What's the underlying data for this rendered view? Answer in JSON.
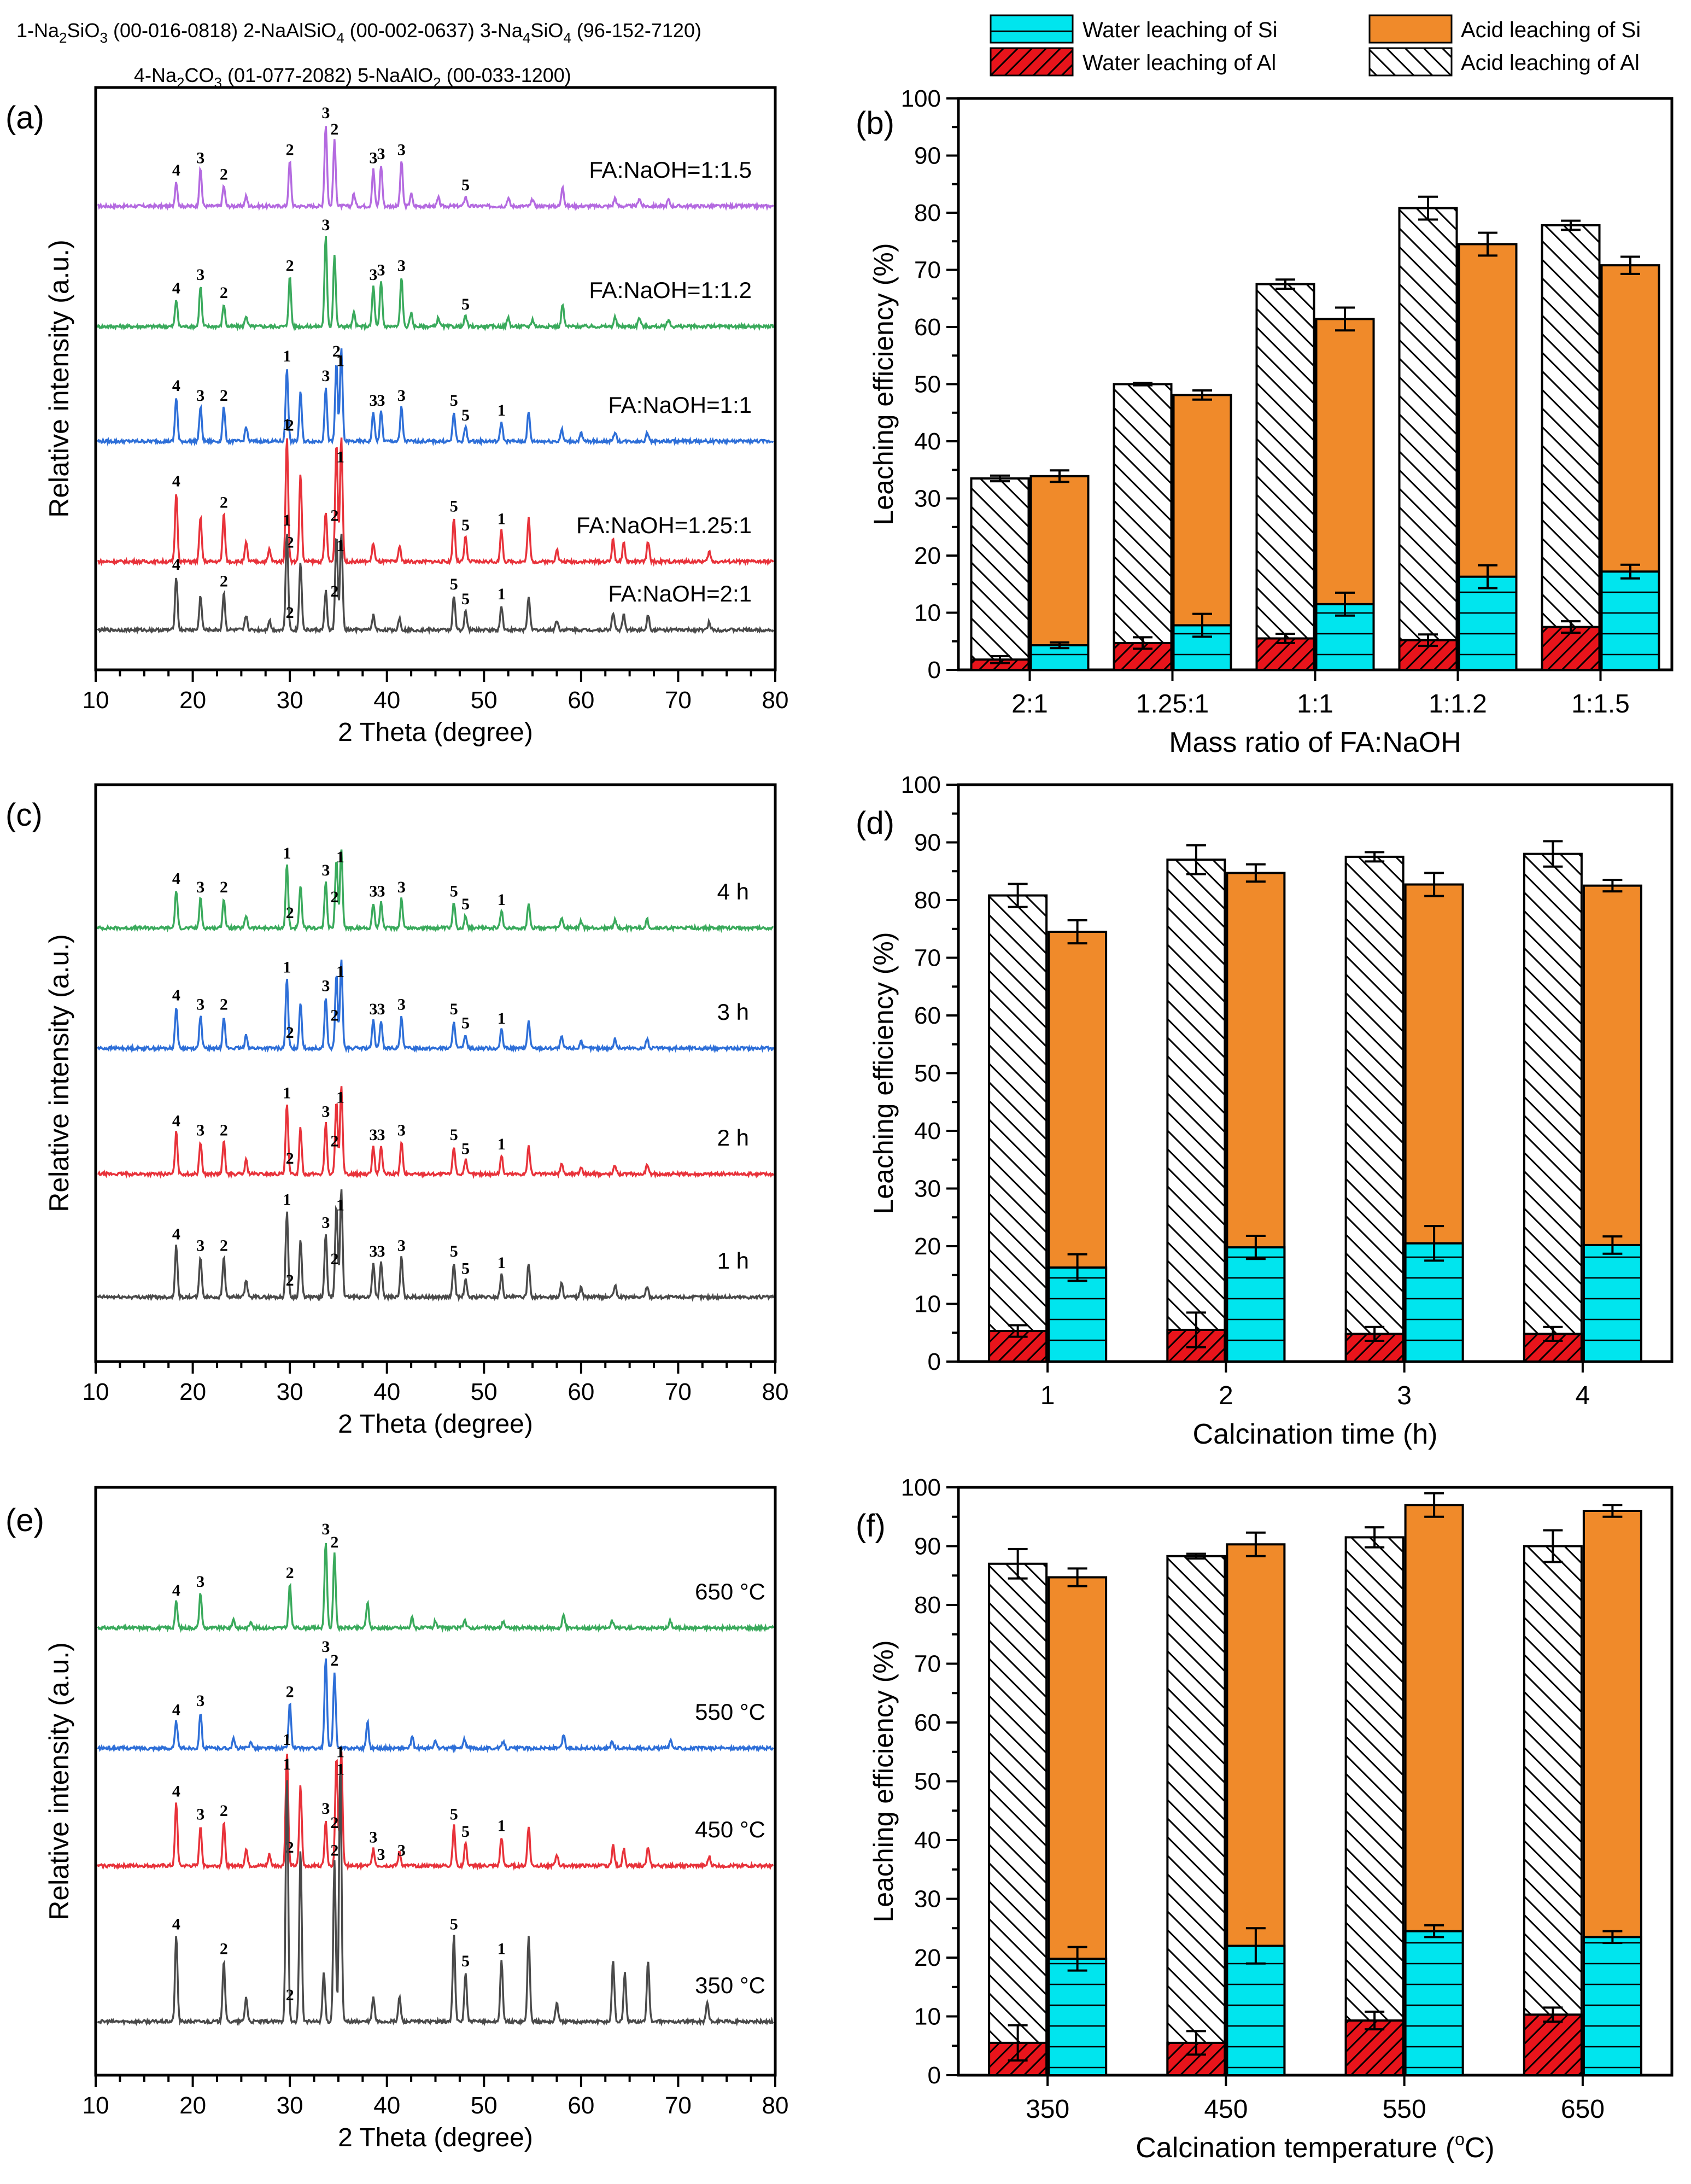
{
  "legend": {
    "water_si": "Water leaching of Si",
    "acid_si": "Acid leaching of Si",
    "water_al": "Water leaching of Al",
    "acid_al": "Acid leaching of Al"
  },
  "phase_header": {
    "line1": [
      {
        "label": "1-Na",
        "sub": "2",
        "mid": "SiO",
        "sub2": "3",
        "tail": " (00-016-0818)"
      },
      {
        "label": "2-NaAlSiO",
        "sub": "4",
        "mid": "",
        "sub2": "",
        "tail": " (00-002-0637)"
      },
      {
        "label": "3-Na",
        "sub": "4",
        "mid": "SiO",
        "sub2": "4",
        "tail": " (96-152-7120)"
      }
    ],
    "line2": [
      {
        "label": "4-Na",
        "sub": "2",
        "mid": "CO",
        "sub2": "3",
        "tail": " (01-077-2082)"
      },
      {
        "label": "5-NaAlO",
        "sub": "2",
        "mid": "",
        "sub2": "",
        "tail": " (00-033-1200)"
      }
    ]
  },
  "colors": {
    "water_si": "#00e5ee",
    "acid_si": "#f08a2a",
    "water_al": "#e8141b",
    "acid_al": "#ffffff",
    "purple": "#b46ae0",
    "green": "#3aaa5c",
    "blue": "#2e6fd8",
    "red": "#e8323a",
    "gray": "#4a4a4a"
  },
  "chart_data": [
    {
      "panel": "(a)",
      "type": "line",
      "xlabel": "2 Theta (degree)",
      "ylabel": "Relative intensity (a.u.)",
      "xlim": [
        10,
        80
      ],
      "xticks": [
        10,
        20,
        30,
        40,
        50,
        60,
        70,
        80
      ],
      "series": [
        {
          "name": "FA:NaOH=1:1.5",
          "color": "purple",
          "peak_labels": [
            {
              "x": 18.3,
              "t": "4"
            },
            {
              "x": 20.8,
              "t": "3"
            },
            {
              "x": 23.2,
              "t": "2"
            },
            {
              "x": 30.0,
              "t": "2"
            },
            {
              "x": 33.7,
              "t": "3"
            },
            {
              "x": 34.6,
              "t": "2"
            },
            {
              "x": 38.6,
              "t": "3"
            },
            {
              "x": 39.4,
              "t": "3"
            },
            {
              "x": 41.5,
              "t": "3"
            },
            {
              "x": 48.1,
              "t": "5"
            }
          ]
        },
        {
          "name": "FA:NaOH=1:1.2",
          "color": "green",
          "peak_labels": [
            {
              "x": 18.3,
              "t": "4"
            },
            {
              "x": 20.8,
              "t": "3"
            },
            {
              "x": 23.2,
              "t": "2"
            },
            {
              "x": 30.0,
              "t": "2"
            },
            {
              "x": 33.7,
              "t": "3"
            },
            {
              "x": 38.6,
              "t": "3"
            },
            {
              "x": 39.4,
              "t": "3"
            },
            {
              "x": 41.5,
              "t": "3"
            },
            {
              "x": 48.1,
              "t": "5"
            }
          ]
        },
        {
          "name": "FA:NaOH=1:1",
          "color": "blue",
          "peak_labels": [
            {
              "x": 18.3,
              "t": "4"
            },
            {
              "x": 20.8,
              "t": "3"
            },
            {
              "x": 23.2,
              "t": "2"
            },
            {
              "x": 29.7,
              "t": "1"
            },
            {
              "x": 30.0,
              "t": "2"
            },
            {
              "x": 33.7,
              "t": "3"
            },
            {
              "x": 34.8,
              "t": "2"
            },
            {
              "x": 35.2,
              "t": "1"
            },
            {
              "x": 38.6,
              "t": "3"
            },
            {
              "x": 39.4,
              "t": "3"
            },
            {
              "x": 41.5,
              "t": "3"
            },
            {
              "x": 46.9,
              "t": "5"
            },
            {
              "x": 48.1,
              "t": "5"
            },
            {
              "x": 51.8,
              "t": "1"
            }
          ]
        },
        {
          "name": "FA:NaOH=1.25:1",
          "color": "red",
          "peak_labels": [
            {
              "x": 18.3,
              "t": "4"
            },
            {
              "x": 23.2,
              "t": "2"
            },
            {
              "x": 29.7,
              "t": "1"
            },
            {
              "x": 30.0,
              "t": "2"
            },
            {
              "x": 34.6,
              "t": "2"
            },
            {
              "x": 35.2,
              "t": "1"
            },
            {
              "x": 46.9,
              "t": "5"
            },
            {
              "x": 48.1,
              "t": "5"
            },
            {
              "x": 51.8,
              "t": "1"
            }
          ]
        },
        {
          "name": "FA:NaOH=2:1",
          "color": "gray",
          "peak_labels": [
            {
              "x": 18.3,
              "t": "4"
            },
            {
              "x": 23.2,
              "t": "2"
            },
            {
              "x": 29.7,
              "t": "1"
            },
            {
              "x": 30.0,
              "t": "2"
            },
            {
              "x": 34.6,
              "t": "2"
            },
            {
              "x": 35.2,
              "t": "1"
            },
            {
              "x": 46.9,
              "t": "5"
            },
            {
              "x": 48.1,
              "t": "5"
            },
            {
              "x": 51.8,
              "t": "1"
            }
          ]
        }
      ]
    },
    {
      "panel": "(b)",
      "type": "bar",
      "xlabel": "Mass ratio of FA:NaOH",
      "ylabel": "Leaching efficiency (%)",
      "ylim": [
        0,
        100
      ],
      "yticks": [
        0,
        10,
        20,
        30,
        40,
        50,
        60,
        70,
        80,
        90,
        100
      ],
      "categories": [
        "2:1",
        "1.25:1",
        "1:1",
        "1:1.2",
        "1:1.5"
      ],
      "series": [
        {
          "name": "Water leaching of Al",
          "values": [
            1.8,
            4.7,
            5.5,
            5.2,
            7.5
          ],
          "err": [
            0.6,
            1.0,
            0.8,
            1.0,
            1.0
          ]
        },
        {
          "name": "Acid leaching of Al",
          "values": [
            33.5,
            50.0,
            67.5,
            80.8,
            77.8
          ],
          "err": [
            0.5,
            0.2,
            0.8,
            2.0,
            0.8
          ]
        },
        {
          "name": "Water leaching of Si",
          "values": [
            4.3,
            7.8,
            11.5,
            16.3,
            17.2
          ],
          "err": [
            0.5,
            2.0,
            2.0,
            2.0,
            1.2
          ]
        },
        {
          "name": "Acid leaching of Si",
          "values": [
            33.9,
            48.1,
            61.4,
            74.5,
            70.8
          ],
          "err": [
            1.0,
            0.8,
            2.0,
            2.0,
            1.5
          ]
        }
      ]
    },
    {
      "panel": "(c)",
      "type": "line",
      "xlabel": "2 Theta (degree)",
      "ylabel": "Relative intensity (a.u.)",
      "xlim": [
        10,
        80
      ],
      "xticks": [
        10,
        20,
        30,
        40,
        50,
        60,
        70,
        80
      ],
      "series": [
        {
          "name": "4 h",
          "color": "green",
          "peak_labels": [
            {
              "x": 18.3,
              "t": "4"
            },
            {
              "x": 20.8,
              "t": "3"
            },
            {
              "x": 23.2,
              "t": "2"
            },
            {
              "x": 29.7,
              "t": "1"
            },
            {
              "x": 30.0,
              "t": "2"
            },
            {
              "x": 33.7,
              "t": "3"
            },
            {
              "x": 34.6,
              "t": "2"
            },
            {
              "x": 35.2,
              "t": "1"
            },
            {
              "x": 38.6,
              "t": "3"
            },
            {
              "x": 39.4,
              "t": "3"
            },
            {
              "x": 41.5,
              "t": "3"
            },
            {
              "x": 46.9,
              "t": "5"
            },
            {
              "x": 48.1,
              "t": "5"
            },
            {
              "x": 51.8,
              "t": "1"
            }
          ]
        },
        {
          "name": "3 h",
          "color": "blue",
          "peak_labels": [
            {
              "x": 18.3,
              "t": "4"
            },
            {
              "x": 20.8,
              "t": "3"
            },
            {
              "x": 23.2,
              "t": "2"
            },
            {
              "x": 29.7,
              "t": "1"
            },
            {
              "x": 30.0,
              "t": "2"
            },
            {
              "x": 33.7,
              "t": "3"
            },
            {
              "x": 34.6,
              "t": "2"
            },
            {
              "x": 35.2,
              "t": "1"
            },
            {
              "x": 38.6,
              "t": "3"
            },
            {
              "x": 39.4,
              "t": "3"
            },
            {
              "x": 41.5,
              "t": "3"
            },
            {
              "x": 46.9,
              "t": "5"
            },
            {
              "x": 48.1,
              "t": "5"
            },
            {
              "x": 51.8,
              "t": "1"
            }
          ]
        },
        {
          "name": "2 h",
          "color": "red",
          "peak_labels": [
            {
              "x": 18.3,
              "t": "4"
            },
            {
              "x": 20.8,
              "t": "3"
            },
            {
              "x": 23.2,
              "t": "2"
            },
            {
              "x": 29.7,
              "t": "1"
            },
            {
              "x": 30.0,
              "t": "2"
            },
            {
              "x": 33.7,
              "t": "3"
            },
            {
              "x": 34.6,
              "t": "2"
            },
            {
              "x": 35.2,
              "t": "1"
            },
            {
              "x": 38.6,
              "t": "3"
            },
            {
              "x": 39.4,
              "t": "3"
            },
            {
              "x": 41.5,
              "t": "3"
            },
            {
              "x": 46.9,
              "t": "5"
            },
            {
              "x": 48.1,
              "t": "5"
            },
            {
              "x": 51.8,
              "t": "1"
            }
          ]
        },
        {
          "name": "1 h",
          "color": "gray",
          "peak_labels": [
            {
              "x": 18.3,
              "t": "4"
            },
            {
              "x": 20.8,
              "t": "3"
            },
            {
              "x": 23.2,
              "t": "2"
            },
            {
              "x": 29.7,
              "t": "1"
            },
            {
              "x": 30.0,
              "t": "2"
            },
            {
              "x": 33.7,
              "t": "3"
            },
            {
              "x": 34.6,
              "t": "2"
            },
            {
              "x": 35.2,
              "t": "1"
            },
            {
              "x": 38.6,
              "t": "3"
            },
            {
              "x": 39.4,
              "t": "3"
            },
            {
              "x": 41.5,
              "t": "3"
            },
            {
              "x": 46.9,
              "t": "5"
            },
            {
              "x": 48.1,
              "t": "5"
            },
            {
              "x": 51.8,
              "t": "1"
            }
          ]
        }
      ]
    },
    {
      "panel": "(d)",
      "type": "bar",
      "xlabel": "Calcination time (h)",
      "ylabel": "Leaching efficiency (%)",
      "ylim": [
        0,
        100
      ],
      "yticks": [
        0,
        10,
        20,
        30,
        40,
        50,
        60,
        70,
        80,
        90,
        100
      ],
      "categories": [
        "1",
        "2",
        "3",
        "4"
      ],
      "series": [
        {
          "name": "Water leaching of Al",
          "values": [
            5.3,
            5.5,
            4.8,
            4.8
          ],
          "err": [
            1.0,
            3.0,
            1.2,
            1.2
          ]
        },
        {
          "name": "Acid leaching of Al",
          "values": [
            80.8,
            87.0,
            87.5,
            88.0
          ],
          "err": [
            2.0,
            2.5,
            0.8,
            2.2
          ]
        },
        {
          "name": "Water leaching of Si",
          "values": [
            16.3,
            19.8,
            20.5,
            20.2
          ],
          "err": [
            2.3,
            2.0,
            3.0,
            1.5
          ]
        },
        {
          "name": "Acid leaching of Si",
          "values": [
            74.5,
            84.7,
            82.7,
            82.5
          ],
          "err": [
            2.0,
            1.5,
            2.0,
            1.0
          ]
        }
      ]
    },
    {
      "panel": "(e)",
      "type": "line",
      "xlabel": "2 Theta (degree)",
      "ylabel": "Relative intensity (a.u.)",
      "xlim": [
        10,
        80
      ],
      "xticks": [
        10,
        20,
        30,
        40,
        50,
        60,
        70,
        80
      ],
      "series": [
        {
          "name": "650 °C",
          "color": "green",
          "peak_labels": [
            {
              "x": 18.3,
              "t": "4"
            },
            {
              "x": 20.8,
              "t": "3"
            },
            {
              "x": 30.0,
              "t": "2"
            },
            {
              "x": 33.7,
              "t": "3"
            },
            {
              "x": 34.6,
              "t": "2"
            }
          ]
        },
        {
          "name": "550 °C",
          "color": "blue",
          "peak_labels": [
            {
              "x": 18.3,
              "t": "4"
            },
            {
              "x": 20.8,
              "t": "3"
            },
            {
              "x": 30.0,
              "t": "2"
            },
            {
              "x": 33.7,
              "t": "3"
            },
            {
              "x": 34.6,
              "t": "2"
            }
          ]
        },
        {
          "name": "450 °C",
          "color": "red",
          "peak_labels": [
            {
              "x": 18.3,
              "t": "4"
            },
            {
              "x": 20.8,
              "t": "3"
            },
            {
              "x": 23.2,
              "t": "2"
            },
            {
              "x": 29.7,
              "t": "1"
            },
            {
              "x": 30.0,
              "t": "2"
            },
            {
              "x": 33.7,
              "t": "3"
            },
            {
              "x": 34.6,
              "t": "2"
            },
            {
              "x": 35.2,
              "t": "1"
            },
            {
              "x": 38.6,
              "t": "3"
            },
            {
              "x": 39.4,
              "t": "3"
            },
            {
              "x": 41.5,
              "t": "3"
            },
            {
              "x": 46.9,
              "t": "5"
            },
            {
              "x": 48.1,
              "t": "5"
            },
            {
              "x": 51.8,
              "t": "1"
            }
          ]
        },
        {
          "name": "350 °C",
          "color": "gray",
          "peak_labels": [
            {
              "x": 18.3,
              "t": "4"
            },
            {
              "x": 23.2,
              "t": "2"
            },
            {
              "x": 29.7,
              "t": "1"
            },
            {
              "x": 30.0,
              "t": "2"
            },
            {
              "x": 34.6,
              "t": "2"
            },
            {
              "x": 35.2,
              "t": "1"
            },
            {
              "x": 46.9,
              "t": "5"
            },
            {
              "x": 48.1,
              "t": "5"
            },
            {
              "x": 51.8,
              "t": "1"
            }
          ]
        }
      ]
    },
    {
      "panel": "(f)",
      "type": "bar",
      "xlabel": "Calcination temperature (°C)",
      "ylabel": "Leaching efficiency (%)",
      "ylim": [
        0,
        100
      ],
      "yticks": [
        0,
        10,
        20,
        30,
        40,
        50,
        60,
        70,
        80,
        90,
        100
      ],
      "categories": [
        "350",
        "450",
        "550",
        "650"
      ],
      "series": [
        {
          "name": "Water leaching of Al",
          "values": [
            5.5,
            5.5,
            9.3,
            10.3
          ],
          "err": [
            3.0,
            2.0,
            1.5,
            1.2
          ]
        },
        {
          "name": "Acid leaching of Al",
          "values": [
            87.0,
            88.3,
            91.5,
            90.0
          ],
          "err": [
            2.5,
            0.4,
            1.7,
            2.7
          ]
        },
        {
          "name": "Water leaching of Si",
          "values": [
            19.8,
            22.0,
            24.5,
            23.5
          ],
          "err": [
            2.0,
            3.0,
            1.0,
            1.0
          ]
        },
        {
          "name": "Acid leaching of Si",
          "values": [
            84.7,
            90.3,
            97.0,
            96.0
          ],
          "err": [
            1.5,
            2.0,
            2.0,
            1.0
          ]
        }
      ]
    }
  ]
}
